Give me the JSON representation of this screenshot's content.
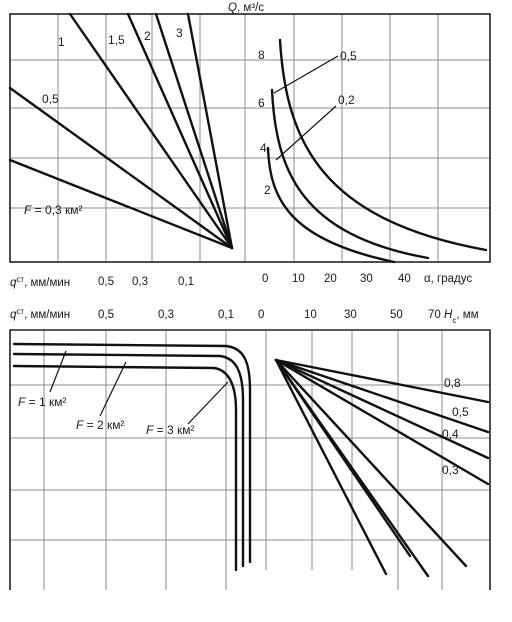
{
  "chart_data": [
    {
      "id": "top-left",
      "type": "line",
      "description_axis": "q^ст",
      "xlabel_parts": {
        "main": "q",
        "sup": "ст",
        "rest": ", мм/мин"
      },
      "x_ticks": [
        "0,5",
        "0,3",
        "0,1"
      ],
      "series": [
        {
          "name": "1"
        },
        {
          "name": "1,5"
        },
        {
          "name": "2"
        },
        {
          "name": "3"
        },
        {
          "name": "0,5"
        },
        {
          "name": "F = 0,3 км²"
        }
      ]
    },
    {
      "id": "top-right",
      "type": "line",
      "ylabel_parts": {
        "main": "Q",
        "rest": ", м³/с"
      },
      "xlabel": "α, градус",
      "x_ticks": [
        "0",
        "10",
        "20",
        "30",
        "40"
      ],
      "y_ticks": [
        "8",
        "6",
        "4",
        "2"
      ],
      "series": [
        {
          "name": "0,5"
        },
        {
          "name": "0,2"
        }
      ]
    },
    {
      "id": "bottom-left",
      "type": "line",
      "xlabel_parts": {
        "main": "q",
        "sup": "ст",
        "rest": ", мм/мин"
      },
      "x_ticks": [
        "0,5",
        "0,3",
        "0,1"
      ],
      "series": [
        {
          "name": "F = 1 км²"
        },
        {
          "name": "F = 2 км²"
        },
        {
          "name": "F = 3 км²"
        }
      ]
    },
    {
      "id": "bottom-right",
      "type": "line",
      "xlabel_parts": {
        "main": "H",
        "sub": "c",
        "rest": ", мм"
      },
      "x_ticks": [
        "0",
        "10",
        "30",
        "50",
        "70"
      ],
      "series": [
        {
          "name": "0,8"
        },
        {
          "name": "0,5"
        },
        {
          "name": "0,4"
        },
        {
          "name": "0,3"
        }
      ]
    }
  ]
}
